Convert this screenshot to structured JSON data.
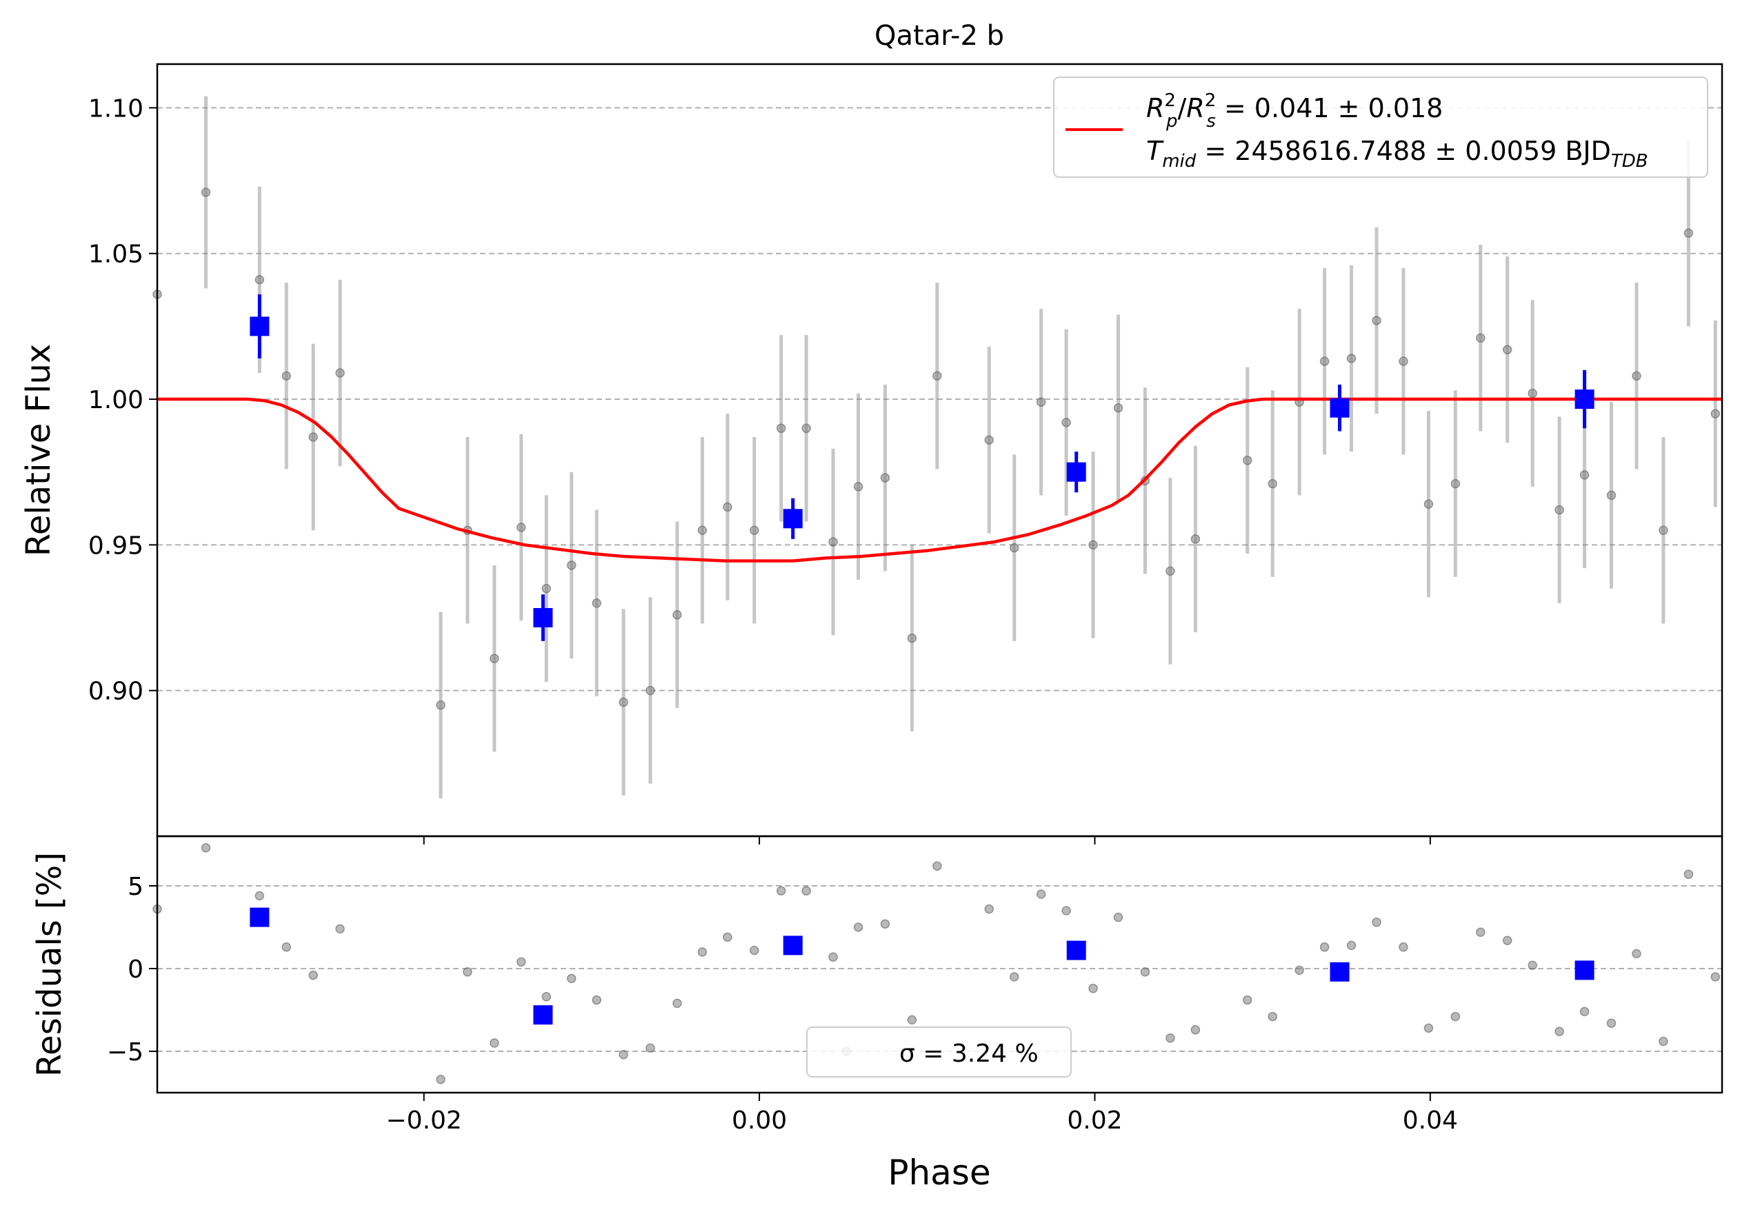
{
  "chart_data": [
    {
      "type": "scatter",
      "title": "Qatar-2 b",
      "xlabel": "Phase",
      "ylabel": "Relative Flux",
      "xlim": [
        -0.0359,
        0.0574
      ],
      "ylim": [
        0.85,
        1.115
      ],
      "xticks": [
        -0.02,
        0.0,
        0.02,
        0.04
      ],
      "xtick_labels": [
        "−0.02",
        "0.00",
        "0.02",
        "0.04"
      ],
      "yticks": [
        0.9,
        0.95,
        1.0,
        1.05,
        1.1
      ],
      "ytick_labels": [
        "0.90",
        "0.95",
        "1.00",
        "1.05",
        "1.10"
      ],
      "grid": "horizontal dashed",
      "legend_placement": "upper right",
      "legend": {
        "line1_lhs": "R",
        "line1_rhs": " = 0.041 ± 0.018",
        "line2_lhs": "T",
        "line2_sub": "mid",
        "line2_rhs": " = 2458616.7488 ± 0.0059 BJD",
        "line2_unit_sub": "TDB"
      },
      "series": [
        {
          "kind": "data",
          "color": "#808080",
          "points": [
            [
              -0.0359,
              1.036,
              0
            ],
            [
              -0.033,
              1.071,
              0.033
            ],
            [
              -0.0298,
              1.041,
              0.032
            ],
            [
              -0.0282,
              1.008,
              0.032
            ],
            [
              -0.0266,
              0.987,
              0.032
            ],
            [
              -0.025,
              1.009,
              0.032
            ],
            [
              -0.019,
              0.895,
              0.032
            ],
            [
              -0.0174,
              0.955,
              0.032
            ],
            [
              -0.0158,
              0.911,
              0.032
            ],
            [
              -0.0142,
              0.956,
              0.032
            ],
            [
              -0.0127,
              0.935,
              0.032
            ],
            [
              -0.0112,
              0.943,
              0.032
            ],
            [
              -0.0097,
              0.93,
              0.032
            ],
            [
              -0.0081,
              0.896,
              0.032
            ],
            [
              -0.0065,
              0.9,
              0.032
            ],
            [
              -0.0049,
              0.926,
              0.032
            ],
            [
              -0.0034,
              0.955,
              0.032
            ],
            [
              -0.0019,
              0.963,
              0.032
            ],
            [
              -0.0003,
              0.955,
              0.032
            ],
            [
              0.0013,
              0.99,
              0.032
            ],
            [
              0.0028,
              0.99,
              0.032
            ],
            [
              0.0044,
              0.951,
              0.032
            ],
            [
              0.0059,
              0.97,
              0.032
            ],
            [
              0.0075,
              0.973,
              0.032
            ],
            [
              0.0091,
              0.918,
              0.032
            ],
            [
              0.0106,
              1.008,
              0.032
            ],
            [
              0.0137,
              0.986,
              0.032
            ],
            [
              0.0152,
              0.949,
              0.032
            ],
            [
              0.0168,
              0.999,
              0.032
            ],
            [
              0.0183,
              0.992,
              0.032
            ],
            [
              0.0199,
              0.95,
              0.032
            ],
            [
              0.0214,
              0.997,
              0.032
            ],
            [
              0.023,
              0.972,
              0.032
            ],
            [
              0.0245,
              0.941,
              0.032
            ],
            [
              0.026,
              0.952,
              0.032
            ],
            [
              0.0291,
              0.979,
              0.032
            ],
            [
              0.0306,
              0.971,
              0.032
            ],
            [
              0.0322,
              0.999,
              0.032
            ],
            [
              0.0337,
              1.013,
              0.032
            ],
            [
              0.0353,
              1.014,
              0.032
            ],
            [
              0.0368,
              1.027,
              0.032
            ],
            [
              0.0384,
              1.013,
              0.032
            ],
            [
              0.0399,
              0.964,
              0.032
            ],
            [
              0.0415,
              0.971,
              0.032
            ],
            [
              0.043,
              1.021,
              0.032
            ],
            [
              0.0446,
              1.017,
              0.032
            ],
            [
              0.0461,
              1.002,
              0.032
            ],
            [
              0.0477,
              0.962,
              0.032
            ],
            [
              0.0492,
              0.974,
              0.032
            ],
            [
              0.0508,
              0.967,
              0.032
            ],
            [
              0.0523,
              1.008,
              0.032
            ],
            [
              0.0539,
              0.955,
              0.032
            ],
            [
              0.0554,
              1.057,
              0.032
            ],
            [
              0.057,
              0.995,
              0.032
            ]
          ]
        },
        {
          "kind": "binned",
          "color": "#0000ff",
          "points": [
            [
              -0.0298,
              1.025,
              0.011
            ],
            [
              -0.0129,
              0.925,
              0.008
            ],
            [
              0.002,
              0.959,
              0.007
            ],
            [
              0.0189,
              0.975,
              0.007
            ],
            [
              0.0346,
              0.997,
              0.008
            ],
            [
              0.0492,
              1.0,
              0.01
            ]
          ]
        },
        {
          "kind": "model",
          "color": "#ff0000",
          "points": [
            [
              -0.0359,
              1.0
            ],
            [
              -0.0305,
              1.0
            ],
            [
              -0.0295,
              0.9995
            ],
            [
              -0.0285,
              0.998
            ],
            [
              -0.0275,
              0.9955
            ],
            [
              -0.0265,
              0.992
            ],
            [
              -0.0255,
              0.987
            ],
            [
              -0.0245,
              0.981
            ],
            [
              -0.0235,
              0.9745
            ],
            [
              -0.0225,
              0.968
            ],
            [
              -0.0215,
              0.9625
            ],
            [
              -0.0205,
              0.9605
            ],
            [
              -0.0195,
              0.9585
            ],
            [
              -0.018,
              0.9555
            ],
            [
              -0.016,
              0.9525
            ],
            [
              -0.014,
              0.95
            ],
            [
              -0.012,
              0.9485
            ],
            [
              -0.01,
              0.947
            ],
            [
              -0.008,
              0.946
            ],
            [
              -0.006,
              0.9455
            ],
            [
              -0.004,
              0.945
            ],
            [
              -0.002,
              0.9445
            ],
            [
              0.0,
              0.9445
            ],
            [
              0.002,
              0.9445
            ],
            [
              0.004,
              0.9455
            ],
            [
              0.006,
              0.946
            ],
            [
              0.008,
              0.947
            ],
            [
              0.01,
              0.948
            ],
            [
              0.012,
              0.9495
            ],
            [
              0.014,
              0.951
            ],
            [
              0.016,
              0.9535
            ],
            [
              0.018,
              0.957
            ],
            [
              0.0195,
              0.96
            ],
            [
              0.021,
              0.9635
            ],
            [
              0.022,
              0.967
            ],
            [
              0.023,
              0.9725
            ],
            [
              0.024,
              0.9785
            ],
            [
              0.025,
              0.985
            ],
            [
              0.026,
              0.9905
            ],
            [
              0.027,
              0.995
            ],
            [
              0.028,
              0.998
            ],
            [
              0.029,
              0.9993
            ],
            [
              0.03,
              1.0
            ],
            [
              0.0574,
              1.0
            ]
          ]
        }
      ]
    },
    {
      "type": "scatter",
      "xlabel": "Phase",
      "ylabel": "Residuals [%]",
      "xlim": [
        -0.0359,
        0.0574
      ],
      "ylim": [
        -7.5,
        8.0
      ],
      "yticks": [
        -5,
        0,
        5
      ],
      "ytick_labels": [
        "−5",
        "0",
        "5"
      ],
      "grid": "horizontal dashed",
      "legend_placement": "lower center",
      "legend_text": "σ = 3.24 %",
      "series": [
        {
          "kind": "data",
          "color": "#808080",
          "points": [
            [
              -0.0359,
              3.6
            ],
            [
              -0.033,
              7.3
            ],
            [
              -0.0298,
              4.4
            ],
            [
              -0.0282,
              1.3
            ],
            [
              -0.0266,
              -0.4
            ],
            [
              -0.025,
              2.4
            ],
            [
              -0.019,
              -6.7
            ],
            [
              -0.0174,
              -0.2
            ],
            [
              -0.0158,
              -4.5
            ],
            [
              -0.0142,
              0.4
            ],
            [
              -0.0127,
              -1.7
            ],
            [
              -0.0112,
              -0.6
            ],
            [
              -0.0097,
              -1.9
            ],
            [
              -0.0081,
              -5.2
            ],
            [
              -0.0065,
              -4.8
            ],
            [
              -0.0049,
              -2.1
            ],
            [
              -0.0034,
              1.0
            ],
            [
              -0.0019,
              1.9
            ],
            [
              -0.0003,
              1.1
            ],
            [
              0.0013,
              4.7
            ],
            [
              0.0028,
              4.7
            ],
            [
              0.0044,
              0.7
            ],
            [
              0.0052,
              -5.0
            ],
            [
              0.0059,
              2.5
            ],
            [
              0.0075,
              2.7
            ],
            [
              0.0091,
              -3.1
            ],
            [
              0.0106,
              6.2
            ],
            [
              0.0137,
              3.6
            ],
            [
              0.0152,
              -0.5
            ],
            [
              0.0168,
              4.5
            ],
            [
              0.0183,
              3.5
            ],
            [
              0.0199,
              -1.2
            ],
            [
              0.0214,
              3.1
            ],
            [
              0.023,
              -0.2
            ],
            [
              0.0245,
              -4.2
            ],
            [
              0.026,
              -3.7
            ],
            [
              0.0291,
              -1.9
            ],
            [
              0.0306,
              -2.9
            ],
            [
              0.0322,
              -0.1
            ],
            [
              0.0337,
              1.3
            ],
            [
              0.0353,
              1.4
            ],
            [
              0.0368,
              2.8
            ],
            [
              0.0384,
              1.3
            ],
            [
              0.0399,
              -3.6
            ],
            [
              0.0415,
              -2.9
            ],
            [
              0.043,
              2.2
            ],
            [
              0.0446,
              1.7
            ],
            [
              0.0461,
              0.2
            ],
            [
              0.0477,
              -3.8
            ],
            [
              0.0492,
              -2.6
            ],
            [
              0.0508,
              -3.3
            ],
            [
              0.0523,
              0.9
            ],
            [
              0.0539,
              -4.4
            ],
            [
              0.0554,
              5.7
            ],
            [
              0.057,
              -0.5
            ]
          ]
        },
        {
          "kind": "binned",
          "color": "#0000ff",
          "points": [
            [
              -0.0298,
              3.1
            ],
            [
              -0.0129,
              -2.8
            ],
            [
              0.002,
              1.4
            ],
            [
              0.0189,
              1.1
            ],
            [
              0.0346,
              -0.2
            ],
            [
              0.0492,
              -0.1
            ]
          ]
        }
      ]
    }
  ]
}
